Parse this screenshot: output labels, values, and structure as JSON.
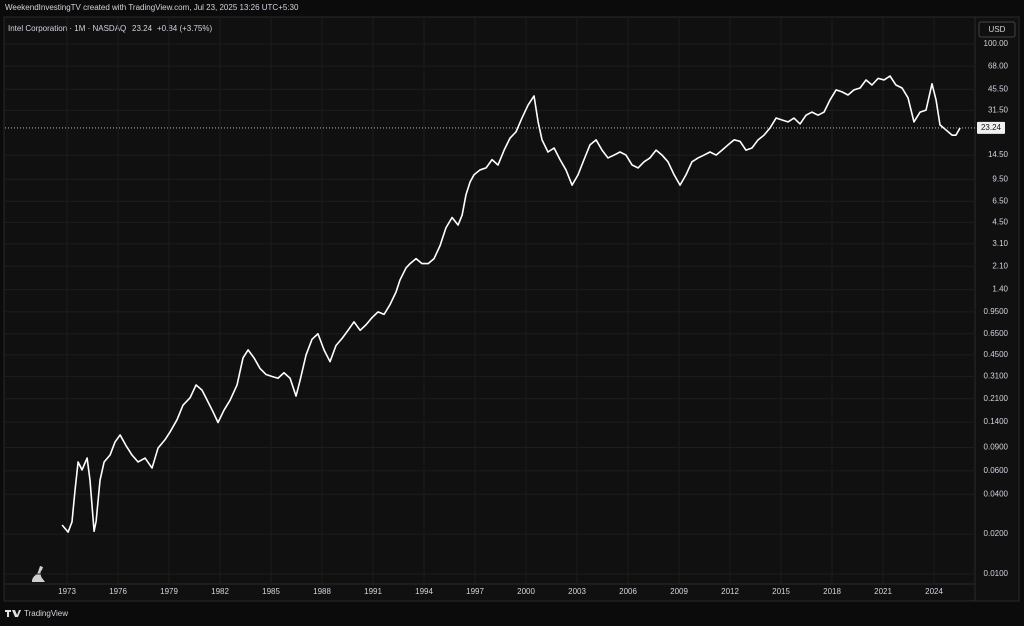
{
  "header": {
    "caption": "WeekendInvestingTV created with TradingView.com, Jul 23, 2025 13:26 UTC+5:30",
    "footer_brand": "TradingView"
  },
  "chart_data": {
    "type": "line",
    "log_scale": true,
    "grid": true,
    "grid_color": "#1d1d1d",
    "currency": "USD",
    "legend_price": 23.24,
    "change_label": "+0.84 (+3.75%)",
    "price_line": 23.24,
    "x": [
      1972.71,
      1973.06,
      1973.29,
      1973.47,
      1973.65,
      1973.88,
      1974.18,
      1974.35,
      1974.59,
      1974.71,
      1974.94,
      1975.18,
      1975.53,
      1975.82,
      1976.12,
      1976.47,
      1976.82,
      1977.18,
      1977.59,
      1978.0,
      1978.35,
      1978.76,
      1979.06,
      1979.47,
      1979.82,
      1980.24,
      1980.59,
      1980.94,
      1981.24,
      1981.59,
      1981.88,
      1982.24,
      1982.59,
      1983.0,
      1983.35,
      1983.65,
      1984.0,
      1984.35,
      1984.71,
      1985.06,
      1985.41,
      1985.76,
      1986.12,
      1986.47,
      1986.71,
      1987.06,
      1987.41,
      1987.76,
      1988.12,
      1988.47,
      1988.82,
      1989.18,
      1989.53,
      1989.88,
      1990.24,
      1990.59,
      1990.94,
      1991.29,
      1991.65,
      1992.0,
      1992.35,
      1992.59,
      1992.94,
      1993.18,
      1993.53,
      1993.88,
      1994.24,
      1994.59,
      1994.94,
      1995.29,
      1995.65,
      1996.0,
      1996.24,
      1996.47,
      1996.71,
      1996.94,
      1997.29,
      1997.65,
      1998.0,
      1998.35,
      1998.71,
      1999.06,
      1999.41,
      1999.76,
      2000.12,
      2000.47,
      2000.71,
      2000.94,
      2001.29,
      2001.65,
      2002.0,
      2002.35,
      2002.71,
      2003.06,
      2003.41,
      2003.76,
      2004.12,
      2004.47,
      2004.82,
      2005.18,
      2005.53,
      2005.88,
      2006.24,
      2006.59,
      2006.94,
      2007.29,
      2007.65,
      2008.0,
      2008.35,
      2008.71,
      2009.06,
      2009.41,
      2009.76,
      2010.12,
      2010.47,
      2010.82,
      2011.18,
      2011.53,
      2011.88,
      2012.24,
      2012.59,
      2012.94,
      2013.29,
      2013.65,
      2014.0,
      2014.35,
      2014.71,
      2015.06,
      2015.41,
      2015.76,
      2016.12,
      2016.47,
      2016.82,
      2017.18,
      2017.53,
      2017.88,
      2018.24,
      2018.59,
      2018.94,
      2019.29,
      2019.65,
      2020.0,
      2020.35,
      2020.71,
      2021.06,
      2021.41,
      2021.76,
      2022.12,
      2022.47,
      2022.82,
      2023.18,
      2023.53,
      2023.88,
      2024.12,
      2024.35,
      2024.71,
      2025.06,
      2025.29,
      2025.53
    ],
    "series": [
      {
        "name": "Intel Corporation · 1M · NASDAQ",
        "color": "#ffffff",
        "values": [
          0.0234,
          0.0207,
          0.0247,
          0.043,
          0.07,
          0.061,
          0.075,
          0.051,
          0.021,
          0.025,
          0.051,
          0.07,
          0.079,
          0.099,
          0.112,
          0.093,
          0.079,
          0.07,
          0.075,
          0.063,
          0.089,
          0.103,
          0.118,
          0.146,
          0.188,
          0.214,
          0.267,
          0.244,
          0.205,
          0.167,
          0.139,
          0.173,
          0.205,
          0.267,
          0.427,
          0.491,
          0.427,
          0.356,
          0.32,
          0.309,
          0.3,
          0.33,
          0.3,
          0.22,
          0.29,
          0.45,
          0.59,
          0.65,
          0.49,
          0.4,
          0.53,
          0.6,
          0.69,
          0.8,
          0.69,
          0.76,
          0.86,
          0.95,
          0.91,
          1.08,
          1.34,
          1.66,
          2.04,
          2.2,
          2.4,
          2.2,
          2.2,
          2.4,
          3.0,
          4.1,
          4.9,
          4.3,
          5.1,
          7.3,
          9.1,
          10.3,
          11.2,
          11.6,
          13.4,
          12.2,
          15.8,
          19.5,
          21.7,
          27.6,
          34.6,
          40.5,
          25.8,
          18.9,
          15.3,
          16.4,
          13.4,
          11.2,
          8.6,
          10.3,
          13.4,
          17.3,
          18.9,
          15.8,
          13.8,
          14.5,
          15.3,
          14.5,
          12.2,
          11.6,
          12.9,
          13.8,
          15.8,
          14.5,
          12.9,
          10.3,
          8.6,
          10.3,
          12.9,
          13.8,
          14.5,
          15.3,
          14.5,
          15.8,
          17.3,
          18.9,
          18.4,
          15.8,
          16.4,
          18.9,
          20.5,
          23.2,
          27.6,
          26.7,
          25.8,
          27.6,
          24.9,
          29.0,
          30.6,
          29.0,
          30.6,
          37.8,
          45.0,
          43.5,
          41.2,
          45.0,
          46.5,
          53.5,
          49.0,
          55.0,
          53.5,
          57.3,
          49.0,
          46.5,
          39.2,
          25.8,
          30.6,
          31.7,
          50.0,
          37.8,
          24.5,
          22.4,
          20.5,
          20.5,
          23.24
        ]
      }
    ],
    "xlim": [
      1969.35,
      2026.41
    ],
    "xticks": [
      1973,
      1976,
      1979,
      1982,
      1985,
      1988,
      1991,
      1994,
      1997,
      2000,
      2003,
      2006,
      2009,
      2012,
      2015,
      2018,
      2021,
      2024
    ],
    "ylim": [
      0.0084,
      157
    ],
    "yticks": [
      {
        "value": 100,
        "label": "100.00"
      },
      {
        "value": 68,
        "label": "68.00"
      },
      {
        "value": 45.5,
        "label": "45.50"
      },
      {
        "value": 31.5,
        "label": "31.50"
      },
      {
        "value": 14.5,
        "label": "14.50"
      },
      {
        "value": 9.5,
        "label": "9.50"
      },
      {
        "value": 6.5,
        "label": "6.50"
      },
      {
        "value": 4.5,
        "label": "4.50"
      },
      {
        "value": 3.1,
        "label": "3.10"
      },
      {
        "value": 2.1,
        "label": "2.10"
      },
      {
        "value": 1.4,
        "label": "1.40"
      },
      {
        "value": 0.95,
        "label": "0.9500"
      },
      {
        "value": 0.65,
        "label": "0.6500"
      },
      {
        "value": 0.45,
        "label": "0.4500"
      },
      {
        "value": 0.31,
        "label": "0.3100"
      },
      {
        "value": 0.21,
        "label": "0.2100"
      },
      {
        "value": 0.14,
        "label": "0.1400"
      },
      {
        "value": 0.09,
        "label": "0.0900"
      },
      {
        "value": 0.06,
        "label": "0.0600"
      },
      {
        "value": 0.04,
        "label": "0.0400"
      },
      {
        "value": 0.02,
        "label": "0.0200"
      },
      {
        "value": 0.01,
        "label": "0.0100"
      }
    ]
  }
}
